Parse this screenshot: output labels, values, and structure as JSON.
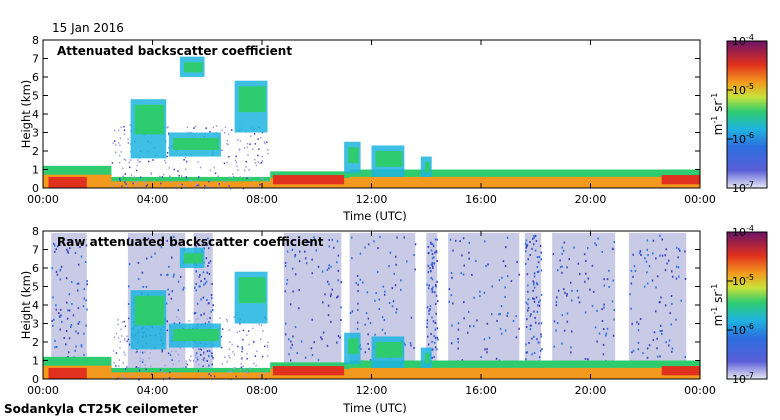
{
  "date": "15 Jan 2016",
  "footer": "Sodankyla CT25K ceilometer",
  "colors": [
    "#3a3fbf",
    "#2c6fe0",
    "#1fb4e0",
    "#2ecc6f",
    "#c8e23a",
    "#f3e82b",
    "#f39a1e",
    "#e0301e",
    "#b0145a",
    "#6a1468"
  ],
  "chart_data": [
    {
      "type": "heatmap",
      "title": "Attenuated backscatter coefficient",
      "xlabel": "Time (UTC)",
      "ylabel": "Height (km)",
      "x_ticks": [
        "00:00",
        "04:00",
        "08:00",
        "12:00",
        "16:00",
        "20:00",
        "00:00"
      ],
      "y_ticks": [
        "0",
        "1",
        "2",
        "3",
        "4",
        "5",
        "6",
        "7",
        "8"
      ],
      "xlim": [
        0,
        24
      ],
      "ylim": [
        0,
        8
      ],
      "colorbar": {
        "label": "m-1 sr-1",
        "scale": "log",
        "range": [
          1e-07,
          0.0001
        ],
        "ticks": [
          "10-7",
          "10-6",
          "10-5",
          "10-4"
        ]
      }
    },
    {
      "type": "heatmap",
      "title": "Raw attenuated backscatter coefficient",
      "xlabel": "Time (UTC)",
      "ylabel": "Height (km)",
      "x_ticks": [
        "00:00",
        "04:00",
        "08:00",
        "12:00",
        "16:00",
        "20:00",
        "00:00"
      ],
      "y_ticks": [
        "0",
        "1",
        "2",
        "3",
        "4",
        "5",
        "6",
        "7",
        "8"
      ],
      "xlim": [
        0,
        24
      ],
      "ylim": [
        0,
        8
      ],
      "colorbar": {
        "label": "m-1 sr-1",
        "scale": "log",
        "range": [
          1e-07,
          0.0001
        ],
        "ticks": [
          "10-7",
          "10-6",
          "10-5",
          "10-4"
        ]
      }
    }
  ]
}
